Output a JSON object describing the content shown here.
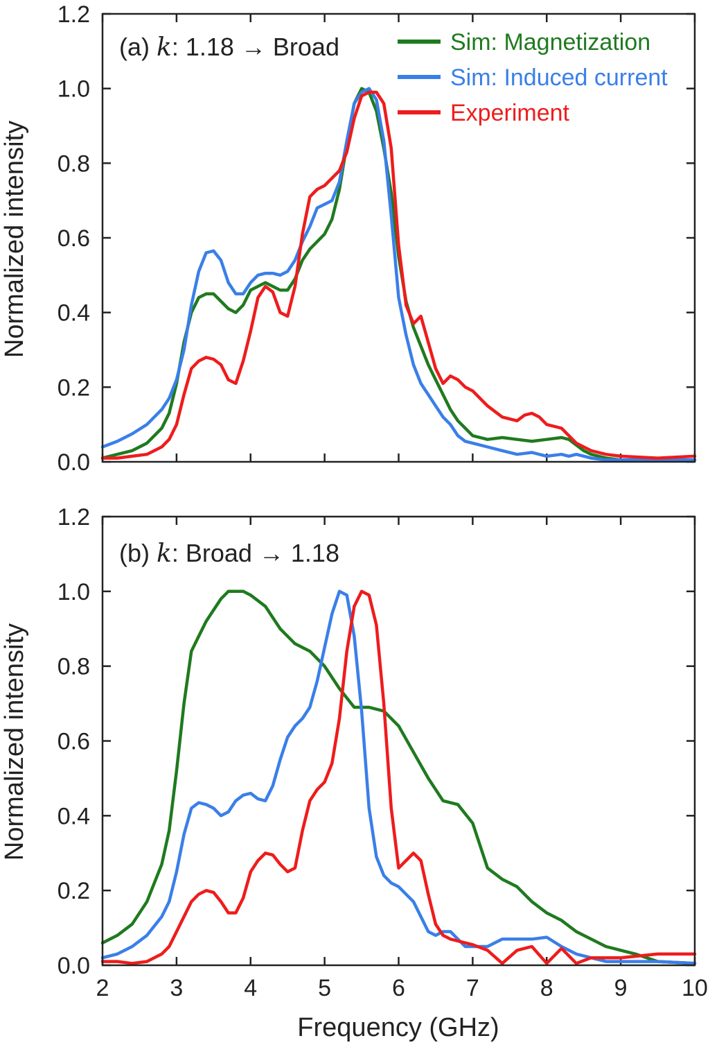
{
  "chart_data": [
    {
      "type": "line",
      "panel": "a",
      "annotation": {
        "prefix": "(a) ",
        "var": "k",
        "text": ": 1.18 → Broad"
      },
      "xlabel": "",
      "ylabel": "Normalized intensity",
      "xlim": [
        2,
        10
      ],
      "ylim": [
        0,
        1.2
      ],
      "xticks": [
        2,
        3,
        4,
        5,
        6,
        7,
        8,
        9,
        10
      ],
      "yticks": [
        0.0,
        0.2,
        0.4,
        0.6,
        0.8,
        1.0,
        1.2
      ],
      "ytick_labels": [
        "0.0",
        "0.2",
        "0.4",
        "0.6",
        "0.8",
        "1.0",
        "1.2"
      ],
      "legend_position": "top-right",
      "series": [
        {
          "name": "Sim: Magnetization",
          "color": "#1f7a1f",
          "x": [
            2.0,
            2.2,
            2.4,
            2.6,
            2.8,
            2.9,
            3.0,
            3.1,
            3.2,
            3.3,
            3.4,
            3.5,
            3.6,
            3.7,
            3.8,
            3.9,
            4.0,
            4.1,
            4.2,
            4.3,
            4.4,
            4.5,
            4.6,
            4.7,
            4.8,
            4.9,
            5.0,
            5.1,
            5.2,
            5.3,
            5.4,
            5.5,
            5.6,
            5.7,
            5.8,
            5.9,
            6.0,
            6.1,
            6.2,
            6.3,
            6.4,
            6.5,
            6.6,
            6.7,
            6.8,
            6.9,
            7.0,
            7.1,
            7.2,
            7.4,
            7.6,
            7.8,
            8.0,
            8.2,
            8.3,
            8.4,
            8.5,
            8.6,
            8.8,
            9.0,
            9.5,
            10.0
          ],
          "y": [
            0.01,
            0.02,
            0.03,
            0.05,
            0.09,
            0.13,
            0.21,
            0.32,
            0.4,
            0.44,
            0.45,
            0.45,
            0.43,
            0.41,
            0.4,
            0.42,
            0.46,
            0.47,
            0.48,
            0.47,
            0.46,
            0.46,
            0.49,
            0.54,
            0.57,
            0.59,
            0.61,
            0.65,
            0.73,
            0.85,
            0.96,
            1.0,
            0.99,
            0.94,
            0.84,
            0.72,
            0.55,
            0.43,
            0.36,
            0.31,
            0.26,
            0.22,
            0.18,
            0.14,
            0.11,
            0.09,
            0.07,
            0.065,
            0.06,
            0.065,
            0.06,
            0.055,
            0.06,
            0.065,
            0.06,
            0.045,
            0.03,
            0.02,
            0.01,
            0.005,
            0.005,
            0.005
          ]
        },
        {
          "name": "Sim: Induced current",
          "color": "#3a7fe8",
          "x": [
            2.0,
            2.2,
            2.4,
            2.6,
            2.8,
            2.9,
            3.0,
            3.1,
            3.2,
            3.3,
            3.4,
            3.5,
            3.6,
            3.7,
            3.8,
            3.9,
            4.0,
            4.1,
            4.2,
            4.3,
            4.4,
            4.5,
            4.6,
            4.7,
            4.8,
            4.9,
            5.0,
            5.1,
            5.2,
            5.3,
            5.4,
            5.5,
            5.6,
            5.7,
            5.8,
            5.9,
            6.0,
            6.1,
            6.2,
            6.3,
            6.4,
            6.5,
            6.6,
            6.7,
            6.8,
            6.9,
            7.0,
            7.2,
            7.4,
            7.6,
            7.8,
            8.0,
            8.2,
            8.3,
            8.4,
            8.6,
            8.8,
            9.0,
            9.5,
            10.0
          ],
          "y": [
            0.04,
            0.055,
            0.075,
            0.1,
            0.14,
            0.17,
            0.22,
            0.3,
            0.42,
            0.51,
            0.56,
            0.565,
            0.54,
            0.48,
            0.45,
            0.45,
            0.48,
            0.5,
            0.505,
            0.505,
            0.5,
            0.51,
            0.54,
            0.59,
            0.63,
            0.68,
            0.69,
            0.7,
            0.75,
            0.86,
            0.96,
            0.99,
            1.0,
            0.97,
            0.86,
            0.66,
            0.44,
            0.34,
            0.26,
            0.21,
            0.18,
            0.15,
            0.12,
            0.1,
            0.07,
            0.055,
            0.05,
            0.04,
            0.03,
            0.02,
            0.025,
            0.015,
            0.02,
            0.015,
            0.02,
            0.01,
            0.005,
            0.005,
            0.005,
            0.005
          ]
        },
        {
          "name": "Experiment",
          "color": "#ee1c1c",
          "x": [
            2.0,
            2.2,
            2.4,
            2.6,
            2.8,
            2.9,
            3.0,
            3.1,
            3.2,
            3.3,
            3.4,
            3.5,
            3.6,
            3.7,
            3.8,
            3.9,
            4.0,
            4.1,
            4.2,
            4.3,
            4.4,
            4.5,
            4.6,
            4.7,
            4.8,
            4.9,
            5.0,
            5.1,
            5.2,
            5.3,
            5.4,
            5.5,
            5.6,
            5.7,
            5.8,
            5.9,
            6.0,
            6.1,
            6.2,
            6.3,
            6.4,
            6.5,
            6.6,
            6.7,
            6.8,
            6.9,
            7.0,
            7.1,
            7.2,
            7.4,
            7.6,
            7.7,
            7.8,
            7.9,
            8.0,
            8.2,
            8.3,
            8.4,
            8.5,
            8.6,
            8.8,
            9.0,
            9.5,
            10.0
          ],
          "y": [
            0.01,
            0.01,
            0.015,
            0.02,
            0.04,
            0.06,
            0.1,
            0.18,
            0.25,
            0.27,
            0.28,
            0.275,
            0.26,
            0.22,
            0.21,
            0.27,
            0.35,
            0.44,
            0.47,
            0.455,
            0.4,
            0.39,
            0.47,
            0.61,
            0.71,
            0.73,
            0.74,
            0.76,
            0.78,
            0.83,
            0.92,
            0.98,
            0.99,
            0.99,
            0.96,
            0.84,
            0.58,
            0.42,
            0.37,
            0.39,
            0.32,
            0.25,
            0.21,
            0.23,
            0.22,
            0.2,
            0.19,
            0.17,
            0.15,
            0.12,
            0.11,
            0.125,
            0.13,
            0.12,
            0.1,
            0.09,
            0.07,
            0.05,
            0.04,
            0.03,
            0.02,
            0.015,
            0.01,
            0.015
          ]
        }
      ]
    },
    {
      "type": "line",
      "panel": "b",
      "annotation": {
        "prefix": "(b) ",
        "var": "k",
        "text": ": Broad → 1.18"
      },
      "xlabel": "Frequency (GHz)",
      "ylabel": "Normalized intensity",
      "xlim": [
        2,
        10
      ],
      "ylim": [
        0,
        1.2
      ],
      "xticks": [
        2,
        3,
        4,
        5,
        6,
        7,
        8,
        9,
        10
      ],
      "yticks": [
        0.0,
        0.2,
        0.4,
        0.6,
        0.8,
        1.0,
        1.2
      ],
      "ytick_labels": [
        "0.0",
        "0.2",
        "0.4",
        "0.6",
        "0.8",
        "1.0",
        "1.2"
      ],
      "series": [
        {
          "name": "Sim: Magnetization",
          "color": "#1f7a1f",
          "x": [
            2.0,
            2.2,
            2.4,
            2.6,
            2.8,
            2.9,
            3.0,
            3.1,
            3.2,
            3.3,
            3.4,
            3.5,
            3.6,
            3.7,
            3.8,
            3.9,
            4.0,
            4.2,
            4.4,
            4.6,
            4.8,
            5.0,
            5.2,
            5.4,
            5.6,
            5.8,
            6.0,
            6.2,
            6.4,
            6.6,
            6.8,
            7.0,
            7.2,
            7.4,
            7.6,
            7.8,
            8.0,
            8.2,
            8.4,
            8.6,
            8.8,
            9.0,
            9.2,
            9.5,
            10.0
          ],
          "y": [
            0.06,
            0.08,
            0.11,
            0.17,
            0.27,
            0.36,
            0.52,
            0.7,
            0.84,
            0.88,
            0.92,
            0.95,
            0.98,
            1.0,
            1.0,
            1.0,
            0.99,
            0.96,
            0.9,
            0.86,
            0.84,
            0.8,
            0.74,
            0.69,
            0.69,
            0.68,
            0.64,
            0.57,
            0.5,
            0.44,
            0.43,
            0.38,
            0.26,
            0.23,
            0.21,
            0.17,
            0.14,
            0.12,
            0.09,
            0.07,
            0.05,
            0.04,
            0.03,
            0.01,
            0.005
          ]
        },
        {
          "name": "Sim: Induced current",
          "color": "#3a7fe8",
          "x": [
            2.0,
            2.2,
            2.4,
            2.6,
            2.8,
            2.9,
            3.0,
            3.1,
            3.2,
            3.3,
            3.4,
            3.5,
            3.6,
            3.7,
            3.8,
            3.9,
            4.0,
            4.1,
            4.2,
            4.3,
            4.4,
            4.5,
            4.6,
            4.7,
            4.8,
            4.9,
            5.0,
            5.1,
            5.2,
            5.3,
            5.4,
            5.5,
            5.6,
            5.7,
            5.8,
            5.9,
            6.0,
            6.1,
            6.2,
            6.3,
            6.4,
            6.5,
            6.6,
            6.7,
            6.8,
            6.9,
            7.0,
            7.2,
            7.4,
            7.6,
            7.8,
            8.0,
            8.2,
            8.4,
            8.6,
            8.8,
            9.0,
            9.5,
            10.0
          ],
          "y": [
            0.02,
            0.03,
            0.05,
            0.08,
            0.13,
            0.17,
            0.25,
            0.35,
            0.42,
            0.435,
            0.43,
            0.42,
            0.4,
            0.41,
            0.44,
            0.455,
            0.46,
            0.445,
            0.44,
            0.48,
            0.55,
            0.61,
            0.64,
            0.66,
            0.69,
            0.76,
            0.85,
            0.94,
            1.0,
            0.99,
            0.88,
            0.68,
            0.42,
            0.29,
            0.24,
            0.22,
            0.21,
            0.19,
            0.17,
            0.13,
            0.09,
            0.08,
            0.09,
            0.09,
            0.07,
            0.05,
            0.05,
            0.05,
            0.07,
            0.07,
            0.07,
            0.075,
            0.05,
            0.03,
            0.02,
            0.01,
            0.01,
            0.01,
            0.005
          ]
        },
        {
          "name": "Experiment",
          "color": "#ee1c1c",
          "x": [
            2.0,
            2.2,
            2.4,
            2.6,
            2.8,
            2.9,
            3.0,
            3.1,
            3.2,
            3.3,
            3.4,
            3.5,
            3.6,
            3.7,
            3.8,
            3.9,
            4.0,
            4.1,
            4.2,
            4.3,
            4.4,
            4.5,
            4.6,
            4.7,
            4.8,
            4.9,
            5.0,
            5.1,
            5.2,
            5.3,
            5.4,
            5.5,
            5.6,
            5.7,
            5.8,
            5.9,
            6.0,
            6.1,
            6.2,
            6.3,
            6.4,
            6.5,
            6.6,
            6.7,
            6.8,
            6.9,
            7.0,
            7.2,
            7.4,
            7.6,
            7.8,
            8.0,
            8.2,
            8.4,
            8.6,
            8.8,
            9.0,
            9.5,
            10.0
          ],
          "y": [
            0.01,
            0.01,
            0.005,
            0.01,
            0.03,
            0.05,
            0.09,
            0.13,
            0.17,
            0.19,
            0.2,
            0.195,
            0.17,
            0.14,
            0.14,
            0.18,
            0.25,
            0.28,
            0.3,
            0.295,
            0.27,
            0.25,
            0.26,
            0.36,
            0.44,
            0.47,
            0.49,
            0.54,
            0.66,
            0.84,
            0.96,
            1.0,
            0.99,
            0.91,
            0.7,
            0.42,
            0.26,
            0.28,
            0.3,
            0.28,
            0.19,
            0.11,
            0.08,
            0.07,
            0.065,
            0.06,
            0.055,
            0.04,
            0.005,
            0.04,
            0.05,
            0.005,
            0.045,
            0.005,
            0.02,
            0.02,
            0.02,
            0.03,
            0.03
          ]
        }
      ]
    }
  ]
}
